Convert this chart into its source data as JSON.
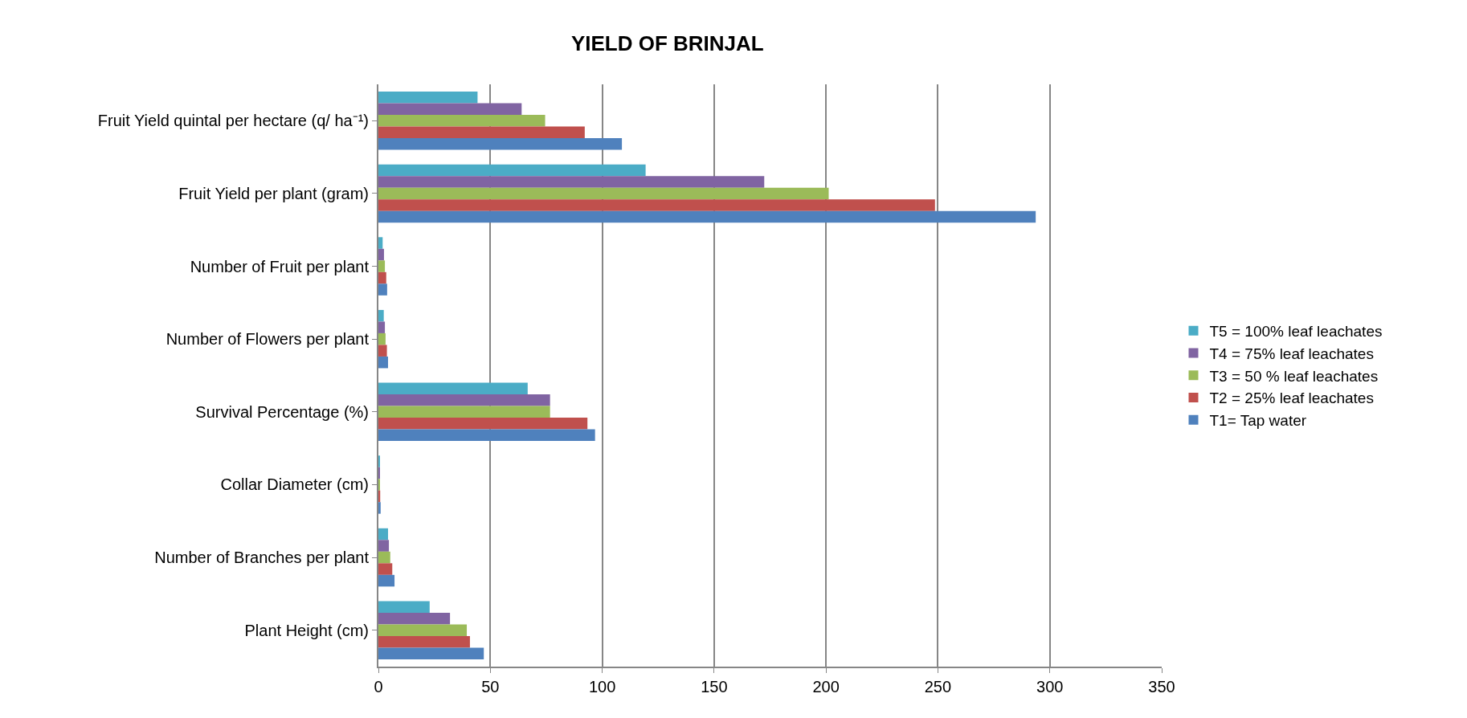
{
  "chart_data": {
    "type": "bar",
    "orientation": "horizontal",
    "title": "YIELD OF BRINJAL",
    "categories": [
      "Fruit Yield quintal per hectare (q/ ha⁻¹)",
      "Fruit Yield per plant (gram)",
      "Number of Fruit per plant",
      "Number of Flowers per plant",
      "Survival Percentage (%)",
      "Collar Diameter (cm)",
      "Number of Branches per plant",
      "Plant Height (cm)"
    ],
    "series": [
      {
        "name": "T1= Tap water",
        "color": "#4f81bd",
        "values": [
          108.8,
          293.7,
          3.9,
          4.3,
          96.8,
          1.0,
          7.2,
          47.1
        ]
      },
      {
        "name": "T2 = 25% leaf leachates",
        "color": "#c0504d",
        "values": [
          92.2,
          248.7,
          3.5,
          3.8,
          93.4,
          0.8,
          6.2,
          40.9
        ]
      },
      {
        "name": "T3 = 50 % leaf leachates",
        "color": "#9bbb59",
        "values": [
          74.5,
          201.2,
          2.9,
          3.2,
          76.7,
          0.7,
          5.3,
          39.5
        ]
      },
      {
        "name": "T4 = 75% leaf leachates",
        "color": "#8064a2",
        "values": [
          64.0,
          172.4,
          2.5,
          2.9,
          76.7,
          0.5,
          4.7,
          32.0
        ]
      },
      {
        "name": "T5 = 100% leaf leachates",
        "color": "#4bacc6",
        "values": [
          44.3,
          119.4,
          1.9,
          2.4,
          66.7,
          0.6,
          4.3,
          22.9
        ]
      }
    ],
    "xlim": [
      0,
      350
    ],
    "xticks": [
      0,
      50,
      100,
      150,
      200,
      250,
      300,
      350
    ],
    "grid": "x",
    "legend": "right"
  }
}
